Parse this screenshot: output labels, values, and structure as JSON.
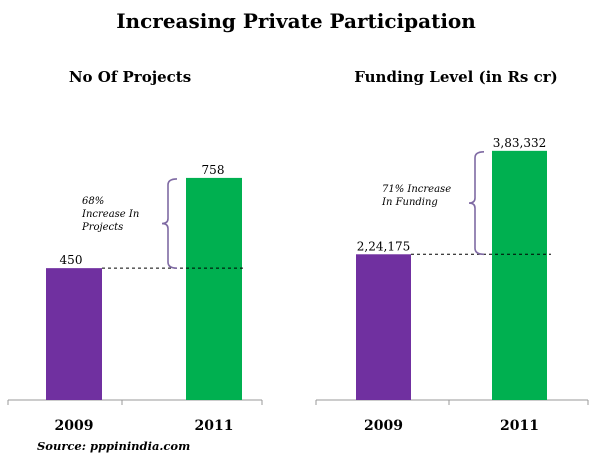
{
  "title": "Increasing Private Participation",
  "source": "Source: pppinindia.com",
  "colors": {
    "purple": "#7030a0",
    "green": "#00b050",
    "axis": "#999999",
    "bracket": "#7f6aa3"
  },
  "chart_data": [
    {
      "type": "bar",
      "title": "No Of Projects",
      "categories": [
        "2009",
        "2011"
      ],
      "values": [
        450,
        758
      ],
      "value_labels": [
        "450",
        "758"
      ],
      "bar_colors": [
        "#7030a0",
        "#00b050"
      ],
      "annotation": [
        "68%",
        "Increase In",
        "Projects"
      ],
      "reference_line_at": 450,
      "ylim": [
        0,
        1000
      ],
      "grid": false
    },
    {
      "type": "bar",
      "title": "Funding Level (in Rs cr)",
      "categories": [
        "2009",
        "2011"
      ],
      "values": [
        224175,
        383332
      ],
      "value_labels": [
        "2,24,175",
        "3,83,332"
      ],
      "bar_colors": [
        "#7030a0",
        "#00b050"
      ],
      "annotation": [
        "71% Increase",
        "In Funding"
      ],
      "reference_line_at": 224175,
      "ylim": [
        0,
        500000
      ],
      "grid": false
    }
  ]
}
